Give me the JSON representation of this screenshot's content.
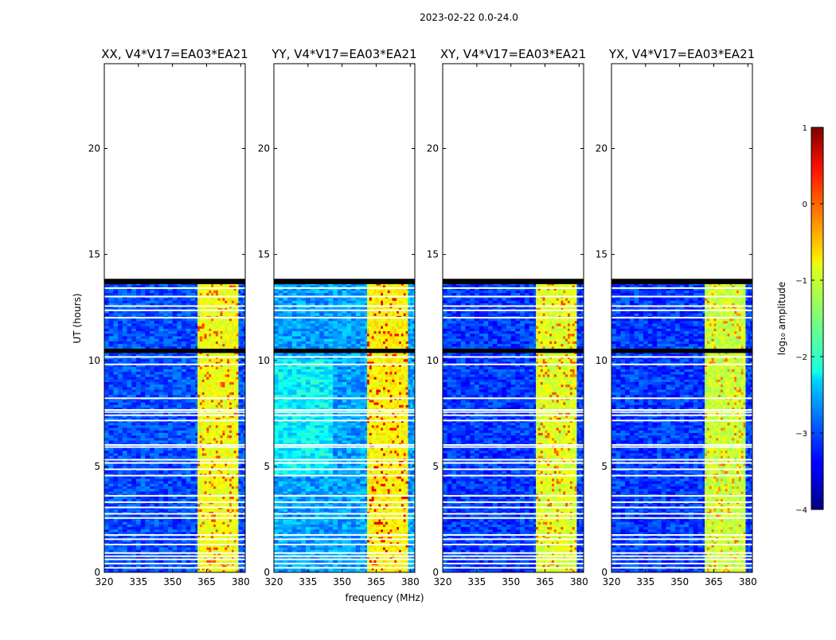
{
  "figure_title": "2023-02-22 0.0-24.0",
  "chart_data": {
    "type": "heatmap",
    "title": "2023-02-22 0.0-24.0",
    "xlabel": "frequency (MHz)",
    "ylabel": "UT (hours)",
    "xlim": [
      320,
      382
    ],
    "ylim": [
      0,
      24
    ],
    "x_ticks": [
      320,
      335,
      350,
      365,
      380
    ],
    "y_ticks": [
      0,
      5,
      10,
      15,
      20
    ],
    "colormap": "jet",
    "colorbar": {
      "label": "log₁₀ amplitude",
      "range": [
        -4,
        1
      ],
      "ticks": [
        1,
        0,
        -1,
        -2,
        -3,
        -4
      ],
      "tick_labels": [
        "1",
        "0",
        "−1",
        "−2",
        "−3",
        "−4"
      ]
    },
    "panels": [
      {
        "title": "XX, V4*V17=EA03*EA21",
        "background_level": -3.0,
        "band_level": -1.0,
        "peak_level": 0.0
      },
      {
        "title": "YY, V4*V17=EA03*EA21",
        "background_level": -2.6,
        "band_level": -0.9,
        "peak_level": 0.4
      },
      {
        "title": "XY, V4*V17=EA03*EA21",
        "background_level": -3.1,
        "band_level": -1.1,
        "peak_level": -0.1
      },
      {
        "title": "YX, V4*V17=EA03*EA21",
        "background_level": -3.1,
        "band_level": -1.2,
        "peak_level": -0.3
      }
    ],
    "data_time_range_hours": [
      0,
      13.6
    ],
    "flagged_black_hours": [
      [
        13.6,
        13.85
      ],
      [
        10.35,
        10.55
      ]
    ],
    "rfi_band_mhz": [
      361,
      379
    ],
    "rfi_subbands_mhz": [
      [
        361,
        365.5
      ],
      [
        366,
        369.5
      ],
      [
        370,
        373.5
      ],
      [
        374,
        378.5
      ]
    ],
    "gap_hours": [
      0.2,
      0.4,
      0.6,
      0.75,
      0.9,
      1.3,
      1.55,
      1.75,
      2.55,
      2.75,
      3.05,
      3.3,
      3.6,
      4.55,
      4.85,
      5.15,
      5.3,
      5.9,
      6.0,
      7.15,
      7.4,
      7.55,
      7.65,
      8.2,
      9.8,
      10.15,
      12.0,
      12.35,
      12.55,
      13.0,
      13.4
    ]
  }
}
